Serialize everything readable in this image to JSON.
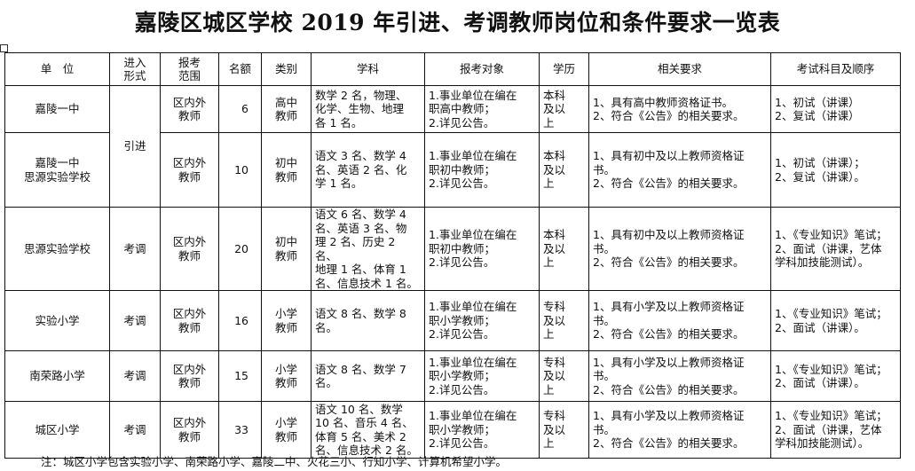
{
  "title": "嘉陵区城区学校 2019 年引进、考调教师岗位和条件要求一览表",
  "headers": [
    "单　位",
    "进入\n形式",
    "报考\n范围",
    "名额",
    "类别",
    "学科",
    "报考对象",
    "学历",
    "相关要求",
    "考试科目及顺序"
  ],
  "rows": [
    {
      "unit": "嘉陵一中",
      "entry": "引进",
      "scope": "区内外\n教师",
      "quota": "6",
      "category": "高中\n教师",
      "subjects": "数学 2 名，物理、\n化学、生物、地理\n各 1 名。",
      "applicants": "1.事业单位在编在\n职高中教师；\n2.详见公告。",
      "education": "本科\n及以\n上",
      "requirements": "1、具有高中教师资格证书。\n2、符合《公告》的相关要求。",
      "exam": "1、初试（讲课）\n2、复试（讲课）"
    },
    {
      "unit": "嘉陵一中\n思源实验学校",
      "entry": "引进",
      "scope": "区内外\n教师",
      "quota": "10",
      "category": "初中\n教师",
      "subjects": "语文 3 名、数学 4\n名、英语 2 名、化\n学 1 名。",
      "applicants": "1.事业单位在编在\n职初中教师；\n2.详见公告。",
      "education": "本科\n及以\n上",
      "requirements": "1、具有初中及以上教师资格证\n书。\n2、符合《公告》的相关要求。",
      "exam": "1、初试（讲课）；\n2、复试（讲课）。"
    },
    {
      "unit": "思源实验学校",
      "entry": "考调",
      "scope": "区内外\n教师",
      "quota": "20",
      "category": "初中\n教师",
      "subjects": "语文 6 名、数学 4\n名、英语 3 名、物\n理 2 名、历史 2 名、\n地理 1 名、体育 1\n名、信息技术 1 名。",
      "applicants": "1.事业单位在编在\n职初中教师；\n2.详见公告。",
      "education": "本科\n及以\n上",
      "requirements": "1、具有初中及以上教师资格证\n书。\n2、符合《公告》的相关要求。",
      "exam": "1、《专业知识》笔试；\n2、面试（讲课，艺体\n学科加技能测试）。"
    },
    {
      "unit": "实验小学",
      "entry": "考调",
      "scope": "区内外\n教师",
      "quota": "16",
      "category": "小学\n教师",
      "subjects": "语文 8 名、数学 8\n名。",
      "applicants": "1.事业单位在编在\n职小学教师；\n2.详见公告。",
      "education": "专科\n及以\n上",
      "requirements": "1、具有小学及以上教师资格证\n书。\n2、符合《公告》的相关要求。",
      "exam": "1、《专业知识》笔试；\n2、面试（讲课）。"
    },
    {
      "unit": "南荣路小学",
      "entry": "考调",
      "scope": "区内外\n教师",
      "quota": "15",
      "category": "小学\n教师",
      "subjects": "语文 8 名、数学 7\n名。",
      "applicants": "1.事业单位在编在\n职小学教师；\n2.详见公告。",
      "education": "专科\n及以\n上",
      "requirements": "1、具有小学及以上教师资格证\n书。\n2、符合《公告》的相关要求。",
      "exam": "1、《专业知识》笔试；\n2、面试（讲课）。"
    },
    {
      "unit": "城区小学",
      "entry": "考调",
      "scope": "区内外\n教师",
      "quota": "33",
      "category": "小学\n教师",
      "subjects": "语文 10 名、数学\n10 名、音乐 4 名、\n体育 5 名、美术 2\n名、信息技术 2 名。",
      "applicants": "1.事业单位在编在\n职小学教师；\n2.详见公告。",
      "education": "专科\n及以\n上",
      "requirements": "1、具有小学及以上教师资格证\n书。\n2、符合《公告》的相关要求。",
      "exam": "1、《专业知识》笔试；\n2、面试（讲课，艺体\n学科加技能测试）。"
    }
  ],
  "note": "注：城区小学包含实验小学、南荣路小学、嘉陵二中、火花三小、行知小学、计算机希望小学。"
}
